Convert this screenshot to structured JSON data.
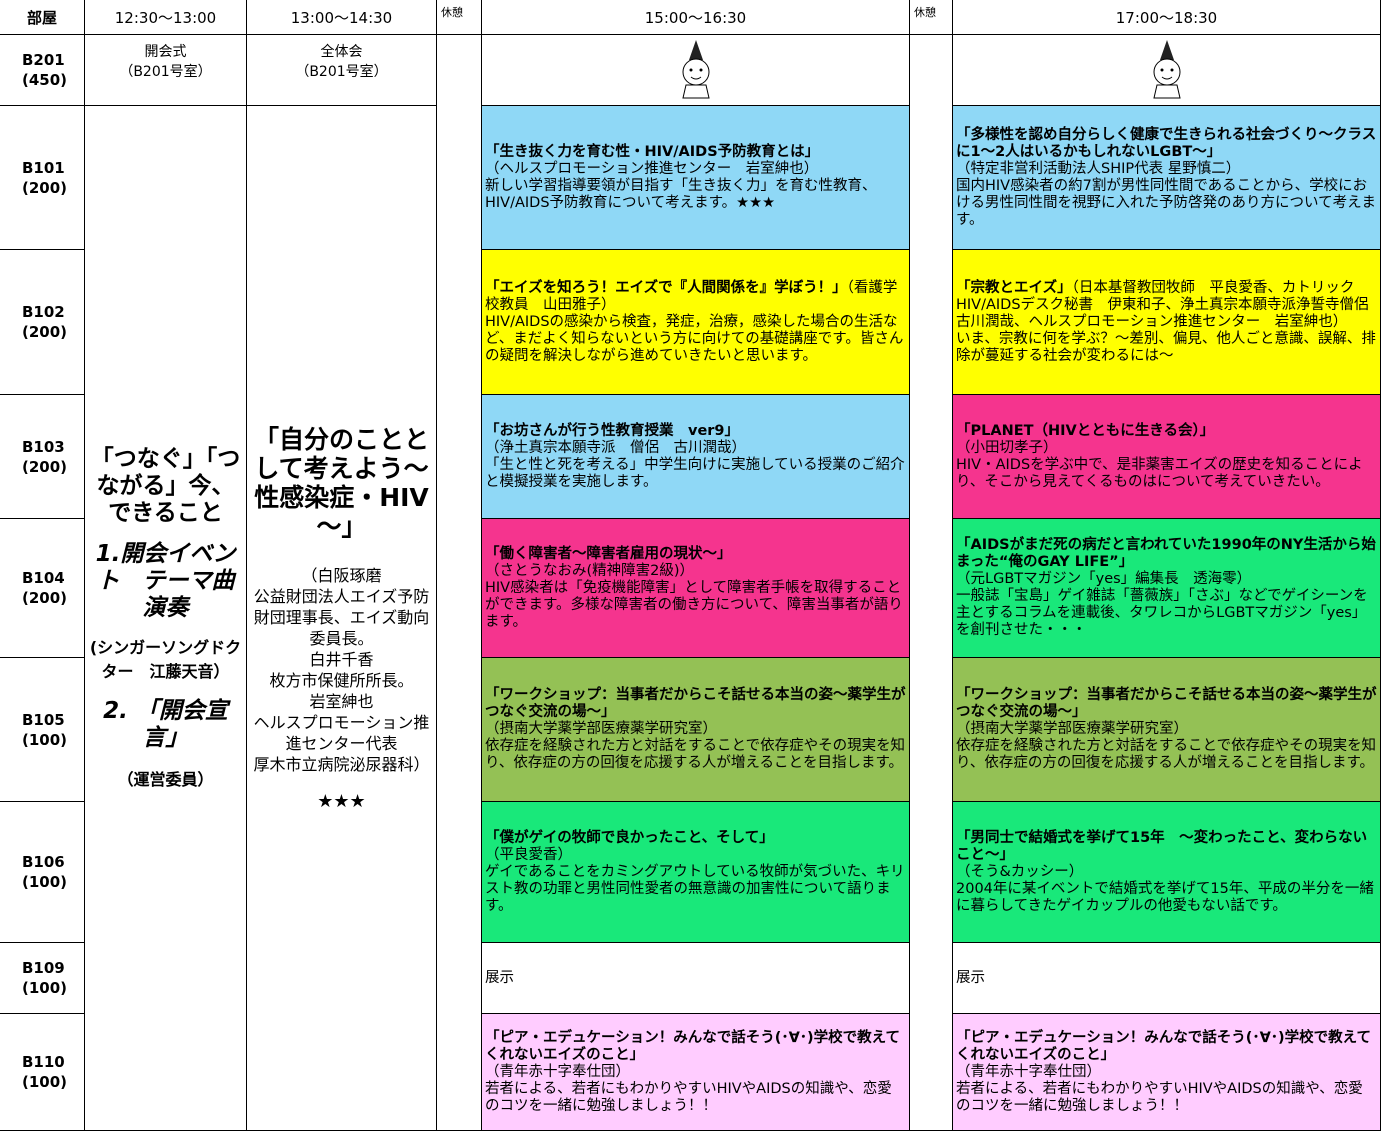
{
  "header": [
    "部屋",
    "12:30～13:00",
    "13:00～14:30",
    "休憩",
    "15:00～16:30",
    "休憩",
    "17:00～18:30"
  ],
  "opening": {
    "name": "開会式",
    "place": "（B201号室）",
    "headline": "「つなぐ」「つながる」今、できること",
    "event1": "1.開会イベント　テーマ曲演奏",
    "performer": "(シンガーソングドクター　江藤天音）",
    "event2": "2. 「開会宣言」",
    "host": "（運営委員）"
  },
  "plenary": {
    "name": "全体会",
    "place": "（B201号室）",
    "theme": "「自分のこととして考えよう～性感染症・HIV～」",
    "speakers": [
      "（白阪琢磨",
      "公益財団法人エイズ予防財団理事長、エイズ動向委員長。",
      "白井千香",
      "枚方市保健所所長。",
      "岩室紳也",
      "ヘルスプロモーション推進センター代表",
      "厚木市立病院泌尿器科）"
    ],
    "rating": "★★★"
  },
  "rows": [
    {
      "room": "B201",
      "capacity": "(450)"
    },
    {
      "room": "B101",
      "capacity": "(200)",
      "sessions": [
        {
          "color": "#8fd8f6",
          "title": "「生き抜く力を育む性・HIV/AIDS予防教育とは」",
          "presenter": "（ヘルスプロモーション推進センター　岩室紳也）",
          "description": "新しい学習指導要領が目指す「生き抜く力」を育む性教育、HIV/AIDS予防教育について考えます。★★★"
        },
        {
          "color": "#8fd8f6",
          "title": "「多様性を認め自分らしく健康で生きられる社会づくり～クラスに1～2人はいるかもしれないLGBT～」",
          "presenter": "（特定非営利活動法人SHIP代表 星野慎二）",
          "description": "国内HIV感染者の約7割が男性同性間であることから、学校における男性同性間を視野に入れた予防啓発のあり方について考えます。"
        }
      ]
    },
    {
      "room": "B102",
      "capacity": "(200)",
      "sessions": [
        {
          "color": "#ffff00",
          "title": "「エイズを知ろう！エイズで『人間関係を』学ぼう！」",
          "presenter": "（看護学校教員　山田雅子）",
          "description": "HIV/AIDSの感染から検査，発症，治療，感染した場合の生活など、まだよく知らないという方に向けての基礎講座です。皆さんの疑問を解決しながら進めていきたいと思います。"
        },
        {
          "color": "#ffff00",
          "title": "「宗教とエイズ」",
          "presenter": "（日本基督教団牧師　平良愛香、カトリックHIV/AIDSデスク秘書　伊東和子、浄土真宗本願寺派浄誓寺僧侶　古川潤哉、ヘルスプロモーション推進センター　岩室紳也）",
          "description": "いま、宗教に何を学ぶ？～差別、偏見、他人ごと意識、誤解、排除が蔓延する社会が変わるには～"
        }
      ]
    },
    {
      "room": "B103",
      "capacity": "(200)",
      "sessions": [
        {
          "color": "#8fd8f6",
          "title": "「お坊さんが行う性教育授業　ver9」",
          "presenter": "（浄土真宗本願寺派　僧侶　古川潤哉）",
          "description": "「生と性と死を考える」中学生向けに実施している授業のご紹介と模擬授業を実施します。"
        },
        {
          "color": "#f5348e",
          "title": "「PLANET（HIVとともに生きる会）」",
          "presenter": "（小田切孝子）",
          "description": "HIV・AIDSを学ぶ中で、是非薬害エイズの歴史を知ることにより、そこから見えてくるものはについて考えていきたい。"
        }
      ]
    },
    {
      "room": "B104",
      "capacity": "(200)",
      "sessions": [
        {
          "color": "#f5348e",
          "title": "「働く障害者～障害者雇用の現状～」",
          "presenter": "（さとうなおみ(精神障害2級)）",
          "description": "HIV感染者は「免疫機能障害」として障害者手帳を取得することができます。多様な障害者の働き方について、障害当事者が語ります。"
        },
        {
          "color": "#19e87a",
          "title": "「AIDSがまだ死の病だと言われていた1990年のNY生活から始まった“俺のGAY LIFE”」",
          "presenter": "（元LGBTマガジン「yes」編集長　透海零）",
          "description": "一般誌「宝島」ゲイ雑誌「薔薇族」「さぶ」などでゲイシーンを主とするコラムを連載後、タワレコからLGBTマガジン「yes」を創刊させた・・・"
        }
      ]
    },
    {
      "room": "B105",
      "capacity": "(100)",
      "sessions": [
        {
          "color": "#94c155",
          "title": "「ワークショップ：当事者だからこそ話せる本当の姿～薬学生がつなぐ交流の場～」",
          "presenter": "（摂南大学薬学部医療薬学研究室）",
          "description": "依存症を経験された方と対話をすることで依存症やその現実を知り、依存症の方の回復を応援する人が増えることを目指します。"
        },
        {
          "color": "#94c155",
          "title": "「ワークショップ：当事者だからこそ話せる本当の姿～薬学生がつなぐ交流の場～」",
          "presenter": "（摂南大学薬学部医療薬学研究室）",
          "description": "依存症を経験された方と対話をすることで依存症やその現実を知り、依存症の方の回復を応援する人が増えることを目指します。"
        }
      ]
    },
    {
      "room": "B106",
      "capacity": "(100)",
      "sessions": [
        {
          "color": "#19e87a",
          "title": "「僕がゲイの牧師で良かったこと、そして」",
          "presenter": "（平良愛香）",
          "description": "ゲイであることをカミングアウトしている牧師が気づいた、キリスト教の功罪と男性同性愛者の無意識の加害性について語ります。"
        },
        {
          "color": "#19e87a",
          "title": "「男同士で結婚式を挙げて15年　～変わったこと、変わらないこと～」",
          "presenter": "（そう&カッシー）",
          "description": "2004年に某イベントで結婚式を挙げて15年、平成の半分を一緒に暮らしてきたゲイカップルの他愛もない話です。"
        }
      ]
    },
    {
      "room": "B109",
      "capacity": "(100)",
      "sessions": [
        {
          "color": "#ffffff",
          "title": "展示"
        },
        {
          "color": "#ffffff",
          "title": "展示"
        }
      ]
    },
    {
      "room": "B110",
      "capacity": "(100)",
      "sessions": [
        {
          "color": "#ffccff",
          "title": "「ピア・エデュケーション！みんなで話そう(･∀･)学校で教えてくれないエイズのこと」",
          "presenter": "（青年赤十字奉仕団）",
          "description": "若者による、若者にもわかりやすいHIVやAIDSの知識や、恋愛のコツを一緒に勉強しましょう！！"
        },
        {
          "color": "#ffccff",
          "title": "「ピア・エデュケーション！みんなで話そう(･∀･)学校で教えてくれないエイズのこと」",
          "presenter": "（青年赤十字奉仕団）",
          "description": "若者による、若者にもわかりやすいHIVやAIDSの知識や、恋愛のコツを一緒に勉強しましょう！！"
        }
      ]
    }
  ]
}
